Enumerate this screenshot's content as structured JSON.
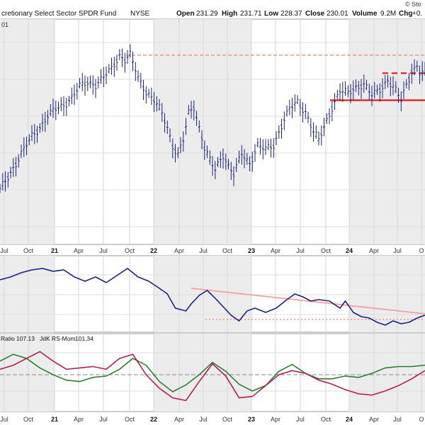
{
  "header": {
    "title": "cretionary Select Sector SPDR Fund",
    "exchange": "NYSE",
    "open_label": "Open",
    "open_value": "231.29",
    "high_label": "High",
    "high_value": "231.71",
    "low_label": "Low",
    "low_value": "228.37",
    "close_label": "Close",
    "close_value": "230.01",
    "volume_label": "Volume",
    "volume_value": "9.2M",
    "chg_label": "Chg",
    "chg_value": "+0.",
    "watermark": "© Sto",
    "corner_label": "01"
  },
  "axis": {
    "months": [
      {
        "label": "Jul",
        "bold": false
      },
      {
        "label": "Oct",
        "bold": false
      },
      {
        "label": "21",
        "bold": true
      },
      {
        "label": "Apr",
        "bold": false
      },
      {
        "label": "Jul",
        "bold": false
      },
      {
        "label": "Oct",
        "bold": false
      },
      {
        "label": "22",
        "bold": true
      },
      {
        "label": "Apr",
        "bold": false
      },
      {
        "label": "Jul",
        "bold": false
      },
      {
        "label": "Oct",
        "bold": false
      },
      {
        "label": "23",
        "bold": true
      },
      {
        "label": "Apr",
        "bold": false
      },
      {
        "label": "Jul",
        "bold": false
      },
      {
        "label": "Oct",
        "bold": false
      },
      {
        "label": "24",
        "bold": true
      },
      {
        "label": "Apr",
        "bold": false
      },
      {
        "label": "Jul",
        "bold": false
      },
      {
        "label": "O",
        "bold": false
      }
    ]
  },
  "indicator": {
    "ratio_label": "Ratio",
    "ratio_value": "107.13",
    "mom_label": "JdK RS-Mom",
    "mom_value": "101.34"
  },
  "chart_data": {
    "type": "line",
    "x_axis": "time (Jul 2020 – Oct 2024)",
    "panels": [
      {
        "name": "price",
        "style": "ohlc_bars",
        "points": [
          [
            0,
            0.24
          ],
          [
            3,
            0.3
          ],
          [
            6,
            0.36
          ],
          [
            9,
            0.42
          ],
          [
            12,
            0.48
          ],
          [
            15,
            0.52
          ],
          [
            18,
            0.57
          ],
          [
            21,
            0.6
          ],
          [
            24,
            0.62
          ],
          [
            27,
            0.65
          ],
          [
            30,
            0.7
          ],
          [
            33,
            0.72
          ],
          [
            36,
            0.71
          ],
          [
            39,
            0.74
          ],
          [
            42,
            0.78
          ],
          [
            45,
            0.84
          ],
          [
            47,
            0.82
          ],
          [
            49,
            0.84
          ],
          [
            52,
            0.74
          ],
          [
            55,
            0.68
          ],
          [
            58,
            0.64
          ],
          [
            61,
            0.58
          ],
          [
            63,
            0.52
          ],
          [
            65,
            0.44
          ],
          [
            67,
            0.4
          ],
          [
            69,
            0.46
          ],
          [
            71,
            0.58
          ],
          [
            73,
            0.61
          ],
          [
            75,
            0.52
          ],
          [
            77,
            0.43
          ],
          [
            79,
            0.37
          ],
          [
            81,
            0.33
          ],
          [
            84,
            0.4
          ],
          [
            86,
            0.35
          ],
          [
            88,
            0.31
          ],
          [
            91,
            0.4
          ],
          [
            94,
            0.36
          ],
          [
            97,
            0.44
          ],
          [
            100,
            0.42
          ],
          [
            103,
            0.44
          ],
          [
            106,
            0.53
          ],
          [
            109,
            0.6
          ],
          [
            112,
            0.63
          ],
          [
            115,
            0.59
          ],
          [
            118,
            0.5
          ],
          [
            120,
            0.46
          ],
          [
            122,
            0.52
          ],
          [
            125,
            0.61
          ],
          [
            128,
            0.68
          ],
          [
            131,
            0.67
          ],
          [
            134,
            0.7
          ],
          [
            137,
            0.71
          ],
          [
            140,
            0.66
          ],
          [
            143,
            0.69
          ],
          [
            146,
            0.73
          ],
          [
            149,
            0.68
          ],
          [
            151,
            0.64
          ],
          [
            153,
            0.71
          ],
          [
            155,
            0.77
          ],
          [
            157,
            0.79
          ],
          [
            158,
            0.76
          ]
        ],
        "resistance_1": 0.84,
        "support": 0.64,
        "resistance_2": 0.76
      },
      {
        "name": "ratio",
        "style": "line",
        "points": [
          [
            0,
            0.7
          ],
          [
            4,
            0.74
          ],
          [
            8,
            0.8
          ],
          [
            12,
            0.84
          ],
          [
            16,
            0.86
          ],
          [
            20,
            0.82
          ],
          [
            24,
            0.84
          ],
          [
            28,
            0.74
          ],
          [
            32,
            0.68
          ],
          [
            36,
            0.74
          ],
          [
            40,
            0.66
          ],
          [
            44,
            0.76
          ],
          [
            48,
            0.86
          ],
          [
            52,
            0.74
          ],
          [
            56,
            0.68
          ],
          [
            60,
            0.58
          ],
          [
            63,
            0.5
          ],
          [
            66,
            0.3
          ],
          [
            70,
            0.26
          ],
          [
            72,
            0.36
          ],
          [
            75,
            0.48
          ],
          [
            78,
            0.55
          ],
          [
            81,
            0.44
          ],
          [
            84,
            0.32
          ],
          [
            87,
            0.2
          ],
          [
            90,
            0.12
          ],
          [
            93,
            0.26
          ],
          [
            96,
            0.3
          ],
          [
            100,
            0.24
          ],
          [
            104,
            0.3
          ],
          [
            108,
            0.42
          ],
          [
            111,
            0.5
          ],
          [
            114,
            0.46
          ],
          [
            117,
            0.4
          ],
          [
            120,
            0.42
          ],
          [
            124,
            0.4
          ],
          [
            128,
            0.3
          ],
          [
            130,
            0.4
          ],
          [
            133,
            0.24
          ],
          [
            136,
            0.18
          ],
          [
            139,
            0.16
          ],
          [
            142,
            0.1
          ],
          [
            145,
            0.06
          ],
          [
            148,
            0.12
          ],
          [
            151,
            0.08
          ],
          [
            154,
            0.1
          ],
          [
            157,
            0.16
          ],
          [
            160,
            0.2
          ]
        ],
        "trendline": [
          [
            72,
            0.58
          ],
          [
            160,
            0.22
          ]
        ],
        "support": 0.14
      },
      {
        "name": "indicators",
        "style": "line",
        "series": [
          {
            "name": "Ratio",
            "color": "#2e7d32",
            "points": [
              [
                0,
                0.7
              ],
              [
                5,
                0.8
              ],
              [
                10,
                0.74
              ],
              [
                15,
                0.6
              ],
              [
                20,
                0.5
              ],
              [
                25,
                0.42
              ],
              [
                30,
                0.4
              ],
              [
                35,
                0.46
              ],
              [
                40,
                0.48
              ],
              [
                45,
                0.58
              ],
              [
                50,
                0.74
              ],
              [
                55,
                0.64
              ],
              [
                60,
                0.4
              ],
              [
                65,
                0.25
              ],
              [
                70,
                0.35
              ],
              [
                75,
                0.5
              ],
              [
                80,
                0.68
              ],
              [
                85,
                0.55
              ],
              [
                90,
                0.36
              ],
              [
                95,
                0.26
              ],
              [
                100,
                0.34
              ],
              [
                105,
                0.55
              ],
              [
                110,
                0.65
              ],
              [
                115,
                0.52
              ],
              [
                120,
                0.44
              ],
              [
                125,
                0.44
              ],
              [
                130,
                0.48
              ],
              [
                135,
                0.46
              ],
              [
                140,
                0.52
              ],
              [
                145,
                0.6
              ],
              [
                150,
                0.62
              ],
              [
                155,
                0.62
              ],
              [
                160,
                0.64
              ]
            ]
          },
          {
            "name": "JdK RS-Mom",
            "color": "#b02050",
            "points": [
              [
                0,
                0.58
              ],
              [
                5,
                0.64
              ],
              [
                10,
                0.74
              ],
              [
                15,
                0.84
              ],
              [
                20,
                0.7
              ],
              [
                25,
                0.58
              ],
              [
                30,
                0.6
              ],
              [
                35,
                0.62
              ],
              [
                40,
                0.58
              ],
              [
                45,
                0.74
              ],
              [
                50,
                0.8
              ],
              [
                55,
                0.5
              ],
              [
                60,
                0.3
              ],
              [
                65,
                0.16
              ],
              [
                70,
                0.12
              ],
              [
                75,
                0.4
              ],
              [
                80,
                0.66
              ],
              [
                85,
                0.48
              ],
              [
                90,
                0.16
              ],
              [
                95,
                0.18
              ],
              [
                100,
                0.34
              ],
              [
                105,
                0.5
              ],
              [
                110,
                0.56
              ],
              [
                115,
                0.52
              ],
              [
                120,
                0.42
              ],
              [
                125,
                0.36
              ],
              [
                130,
                0.28
              ],
              [
                135,
                0.22
              ],
              [
                140,
                0.2
              ],
              [
                145,
                0.26
              ],
              [
                150,
                0.34
              ],
              [
                155,
                0.44
              ],
              [
                160,
                0.56
              ]
            ]
          }
        ],
        "zero_line": 0.5
      }
    ]
  }
}
